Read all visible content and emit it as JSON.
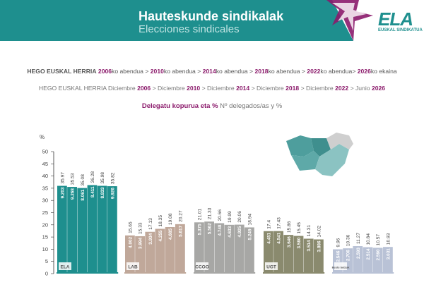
{
  "header": {
    "title": "Hauteskunde sindikalak",
    "subtitle": "Elecciones sindicales",
    "logo": "ELA",
    "logo_sub": "EUSKAL SINDIKATUA",
    "accent_color": "#1e8f8e",
    "star_color": "#8b1a6b"
  },
  "timeline_eu": {
    "region": "HEGO EUSKAL HERRIA",
    "entries": [
      {
        "year": "2006",
        "text": "ko abendua",
        "sep": " > "
      },
      {
        "year": "2010",
        "text": "ko abendua",
        "sep": " > "
      },
      {
        "year": "2014",
        "text": "ko abendua",
        "sep": " > "
      },
      {
        "year": "2018",
        "text": "ko abendua",
        "sep": " > "
      },
      {
        "year": "2022",
        "text": "ko abendua",
        "sep": "> "
      },
      {
        "year": "2026",
        "text": "ko ekaina",
        "sep": ""
      }
    ]
  },
  "timeline_es": {
    "region": "HEGO EUSKAL HERRIA",
    "entries": [
      {
        "text": "Diciembre",
        "year": "2006",
        "sep": " > "
      },
      {
        "text": "Diciembre",
        "year": "2010",
        "sep": " > "
      },
      {
        "text": "Diciembre",
        "year": "2014",
        "sep": " > "
      },
      {
        "text": "Diciembre",
        "year": "2018",
        "sep": " > "
      },
      {
        "text": "Diciembre",
        "year": "2022",
        "sep": " >  "
      },
      {
        "text": "Junio",
        "year": "2026",
        "sep": ""
      }
    ]
  },
  "chart_subtitle": {
    "bold": "Delegatu kopurua eta %",
    "normal": " Nº delegados/as y %"
  },
  "chart_data": {
    "type": "bar",
    "ylabel": "%",
    "ylim": [
      0,
      50
    ],
    "yticks": [
      0,
      5,
      10,
      15,
      20,
      25,
      30,
      35,
      40,
      45,
      50
    ],
    "groups": [
      {
        "name": "ELA",
        "logo": "ELA",
        "color": "#1e8f8e",
        "box_color": "#1e8f8e",
        "values": [
          35.97,
          35.53,
          35.08,
          36.28,
          35.98,
          35.82
        ],
        "delegates": [
          "9.203",
          "9.268",
          "8.061",
          "8.411",
          "8.833",
          "9.926"
        ]
      },
      {
        "name": "LAB",
        "logo": "LAB",
        "color": "#c0a89a",
        "box_color": "#c0a89a",
        "values": [
          15.65,
          15.33,
          17.13,
          18.35,
          19.08,
          20.27
        ],
        "delegates": [
          "4.002",
          "3.994",
          "3.934",
          "4.255",
          "4.685",
          "5.617"
        ]
      },
      {
        "name": "CCOO",
        "logo": "CCOO",
        "color": "#a7a7a5",
        "box_color": "#a7a7a5",
        "values": [
          21.01,
          21.33,
          20.66,
          19.99,
          20.06,
          18.94
        ],
        "delegates": [
          "5.375",
          "5.562",
          "4.748",
          "4.633",
          "4.925",
          "5.249"
        ]
      },
      {
        "name": "UGT",
        "logo": "UGT",
        "color": "#8a8a6e",
        "box_color": "#8a8a6e",
        "values": [
          17.4,
          17.43,
          15.86,
          15.45,
          14.31,
          14.02
        ],
        "delegates": [
          "4.451",
          "4.541",
          "3.646",
          "3.580",
          "3.514",
          "3.886"
        ]
      },
      {
        "name": "Others",
        "logo": "Beste batzuk",
        "color": "#b9c2d6",
        "box_color": "#b9c2d6",
        "values": [
          9.96,
          10.36,
          11.27,
          10.84,
          10.57,
          10.93
        ],
        "delegates": [
          "2.546",
          "2.706",
          "2.593",
          "2.514",
          "2.590",
          "3.031"
        ]
      }
    ]
  }
}
